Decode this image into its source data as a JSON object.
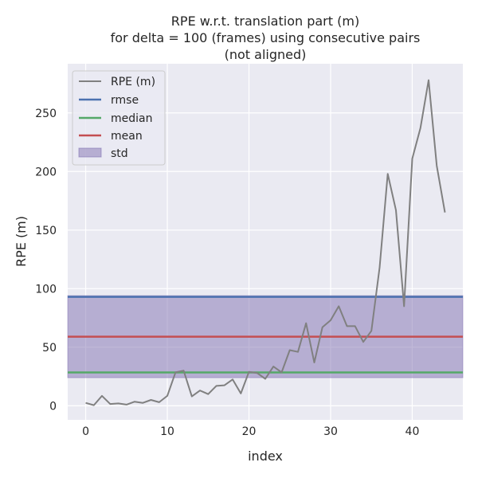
{
  "chart_data": {
    "type": "line",
    "title_lines": [
      "RPE w.r.t. translation part (m)",
      "for delta = 100 (frames) using consecutive pairs",
      "(not aligned)"
    ],
    "xlabel": "index",
    "ylabel": "RPE (m)",
    "xlim": [
      -2.2,
      46.2
    ],
    "ylim": [
      -12,
      292
    ],
    "x_ticks": [
      0,
      10,
      20,
      30,
      40
    ],
    "y_ticks": [
      0,
      50,
      100,
      150,
      200,
      250
    ],
    "grid": true,
    "legend_position": "top-left",
    "series": [
      {
        "name": "RPE (m)",
        "color": "#808080",
        "x": [
          0,
          1,
          2,
          3,
          4,
          5,
          6,
          7,
          8,
          9,
          10,
          11,
          12,
          13,
          14,
          15,
          16,
          17,
          18,
          19,
          20,
          21,
          22,
          23,
          24,
          25,
          26,
          27,
          28,
          29,
          30,
          31,
          32,
          33,
          34,
          35,
          36,
          37,
          38,
          39,
          40,
          41,
          42,
          43,
          44
        ],
        "values": [
          2.5,
          0.5,
          8.5,
          1.5,
          2,
          1,
          3.5,
          2.5,
          5,
          3,
          8.5,
          28.5,
          30,
          8,
          13,
          10,
          17,
          17.5,
          22.5,
          10.5,
          29,
          28,
          23,
          33.5,
          28.5,
          47.5,
          46,
          70.5,
          37,
          67,
          73,
          85,
          68,
          68,
          54.5,
          64,
          118,
          198,
          167,
          85,
          211,
          237,
          278,
          205,
          165
        ]
      }
    ],
    "statistics": [
      {
        "name": "rmse",
        "value": 93,
        "color": "#4c72b0"
      },
      {
        "name": "median",
        "value": 28.5,
        "color": "#55a868"
      },
      {
        "name": "mean",
        "value": 59,
        "color": "#c44e52"
      }
    ],
    "std_band": {
      "name": "std",
      "low": 24,
      "high": 94,
      "color": "#8172b2"
    },
    "colors": {
      "background": "#eaeaf2",
      "grid": "#ffffff",
      "text": "#262626"
    }
  }
}
